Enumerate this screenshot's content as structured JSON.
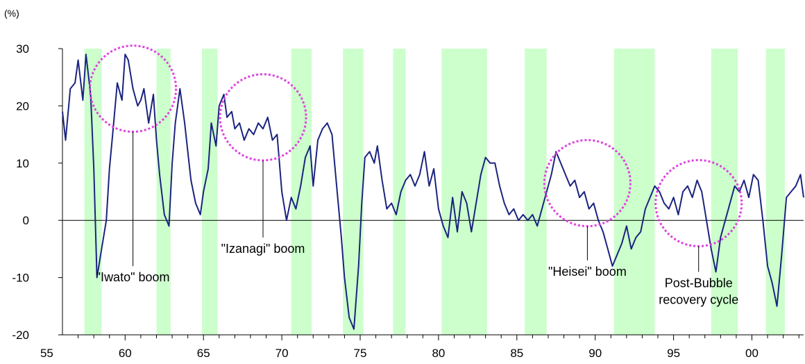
{
  "chart_data": {
    "type": "line",
    "title": "",
    "xlabel": "",
    "ylabel": "(%)",
    "xlim": [
      1956,
      2003.3
    ],
    "ylim": [
      -20,
      30
    ],
    "x_ticks": [
      {
        "v": 1955,
        "label": "55"
      },
      {
        "v": 1960,
        "label": "60"
      },
      {
        "v": 1965,
        "label": "65"
      },
      {
        "v": 1970,
        "label": "70"
      },
      {
        "v": 1975,
        "label": "75"
      },
      {
        "v": 1980,
        "label": "80"
      },
      {
        "v": 1985,
        "label": "85"
      },
      {
        "v": 1990,
        "label": "90"
      },
      {
        "v": 1995,
        "label": "95"
      },
      {
        "v": 2000,
        "label": "00"
      }
    ],
    "y_ticks": [
      {
        "v": 30,
        "label": "30"
      },
      {
        "v": 20,
        "label": "20"
      },
      {
        "v": 10,
        "label": "10"
      },
      {
        "v": 0,
        "label": "0"
      },
      {
        "v": -10,
        "label": "-10"
      },
      {
        "v": -20,
        "label": "-20"
      }
    ],
    "grid": false,
    "colors": {
      "line": "#1a237e",
      "recession": "#ccffcc",
      "circle": "#e040e0",
      "axis": "#000000"
    },
    "recession_periods": [
      [
        1957.4,
        1958.5
      ],
      [
        1962.0,
        1962.9
      ],
      [
        1964.9,
        1965.9
      ],
      [
        1970.6,
        1971.9
      ],
      [
        1973.9,
        1975.2
      ],
      [
        1977.1,
        1977.9
      ],
      [
        1980.2,
        1983.1
      ],
      [
        1985.5,
        1986.9
      ],
      [
        1991.2,
        1993.8
      ],
      [
        1997.4,
        1999.1
      ],
      [
        2000.9,
        2002.1
      ]
    ],
    "series": [
      {
        "name": "",
        "x": [
          1956.0,
          1956.2,
          1956.5,
          1956.8,
          1957.0,
          1957.3,
          1957.5,
          1957.8,
          1958.0,
          1958.2,
          1958.5,
          1958.8,
          1959.0,
          1959.2,
          1959.5,
          1959.8,
          1960.0,
          1960.2,
          1960.5,
          1960.8,
          1961.0,
          1961.2,
          1961.5,
          1961.8,
          1962.0,
          1962.2,
          1962.5,
          1962.8,
          1963.0,
          1963.2,
          1963.5,
          1963.8,
          1964.0,
          1964.2,
          1964.5,
          1964.8,
          1965.0,
          1965.3,
          1965.5,
          1965.8,
          1966.0,
          1966.3,
          1966.5,
          1966.8,
          1967.0,
          1967.3,
          1967.6,
          1967.9,
          1968.2,
          1968.5,
          1968.8,
          1969.1,
          1969.4,
          1969.7,
          1970.0,
          1970.3,
          1970.6,
          1970.9,
          1971.2,
          1971.5,
          1971.8,
          1972.0,
          1972.3,
          1972.6,
          1972.9,
          1973.2,
          1973.5,
          1973.8,
          1974.0,
          1974.3,
          1974.6,
          1974.9,
          1975.1,
          1975.3,
          1975.6,
          1975.9,
          1976.1,
          1976.4,
          1976.7,
          1977.0,
          1977.3,
          1977.6,
          1977.9,
          1978.2,
          1978.5,
          1978.8,
          1979.1,
          1979.4,
          1979.7,
          1980.0,
          1980.3,
          1980.6,
          1980.9,
          1981.2,
          1981.5,
          1981.8,
          1982.1,
          1982.4,
          1982.7,
          1983.0,
          1983.3,
          1983.6,
          1983.9,
          1984.2,
          1984.5,
          1984.8,
          1985.1,
          1985.4,
          1985.7,
          1986.0,
          1986.3,
          1986.6,
          1986.9,
          1987.2,
          1987.5,
          1987.8,
          1988.1,
          1988.4,
          1988.7,
          1989.0,
          1989.3,
          1989.6,
          1989.9,
          1990.2,
          1990.5,
          1990.8,
          1991.1,
          1991.4,
          1991.7,
          1992.0,
          1992.3,
          1992.6,
          1992.9,
          1993.2,
          1993.5,
          1993.8,
          1994.1,
          1994.4,
          1994.7,
          1995.0,
          1995.3,
          1995.6,
          1995.9,
          1996.2,
          1996.5,
          1996.8,
          1997.1,
          1997.4,
          1997.7,
          1998.0,
          1998.3,
          1998.6,
          1998.9,
          1999.2,
          1999.5,
          1999.8,
          2000.1,
          2000.4,
          2000.7,
          2001.0,
          2001.3,
          2001.6,
          2001.9,
          2002.2,
          2002.5,
          2002.8,
          2003.1,
          2003.3
        ],
        "values": [
          19,
          14,
          23,
          24,
          28,
          21,
          29,
          22,
          9,
          -10,
          -5,
          0,
          9,
          15,
          24,
          21,
          29,
          28,
          23,
          20,
          21,
          23,
          17,
          22,
          14,
          8,
          1,
          -1,
          10,
          17,
          23,
          17,
          12,
          7,
          3,
          1,
          5,
          9,
          17,
          13,
          20,
          22,
          18,
          19,
          16,
          17,
          14,
          16,
          15,
          17,
          16,
          18,
          14,
          15,
          5,
          0,
          4,
          2,
          6,
          11,
          13,
          6,
          14,
          16,
          17,
          15,
          6,
          -3,
          -10,
          -17,
          -19,
          -8,
          3,
          11,
          12,
          10,
          13,
          7,
          2,
          3,
          1,
          5,
          7,
          8,
          6,
          8,
          12,
          6,
          9,
          2,
          -1,
          -3,
          4,
          -2,
          5,
          3,
          -2,
          3,
          8,
          11,
          10,
          10,
          6,
          3,
          1,
          2,
          0,
          1,
          0,
          1,
          -1,
          2,
          5,
          8,
          12,
          10,
          8,
          6,
          7,
          4,
          5,
          2,
          3,
          0,
          -2,
          -5,
          -8,
          -6,
          -4,
          -1,
          -5,
          -3,
          -2,
          2,
          4,
          6,
          5,
          3,
          2,
          4,
          1,
          5,
          6,
          4,
          7,
          5,
          0,
          -5,
          -9,
          -3,
          0,
          3,
          6,
          5,
          7,
          4,
          8,
          7,
          0,
          -8,
          -11,
          -15,
          -6,
          4,
          5,
          6,
          8,
          4
        ]
      }
    ],
    "annotations": [
      {
        "label": "\"Iwato\" boom",
        "circle_x": 1960.5,
        "circle_y": 23,
        "line_bottom_y": -8
      },
      {
        "label": "\"Izanagi\" boom",
        "circle_x": 1968.8,
        "circle_y": 18,
        "line_bottom_y": -3
      },
      {
        "label": "\"Heisei\" boom",
        "circle_x": 1989.5,
        "circle_y": 6.5,
        "line_bottom_y": -7
      },
      {
        "label": "Post-Bubble",
        "label2": "recovery cycle",
        "circle_x": 1996.6,
        "circle_y": 3,
        "line_bottom_y": -9
      }
    ]
  }
}
